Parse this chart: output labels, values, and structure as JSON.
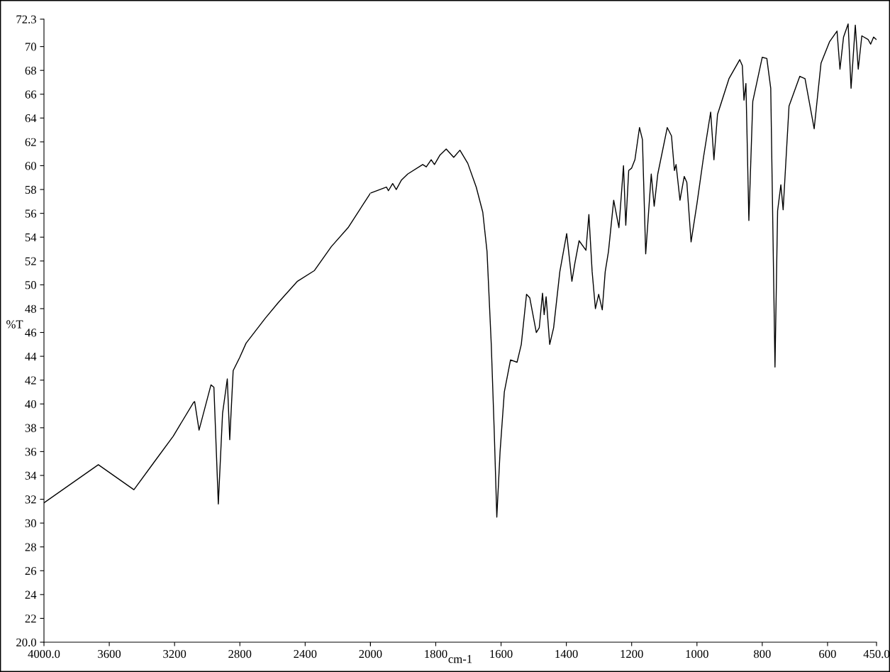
{
  "chart_data": [
    {
      "type": "line",
      "ylabel": "%T",
      "color": "#000000",
      "grid": false,
      "marker": "none",
      "line_style": "solid",
      "xlim": [
        4000,
        2000
      ],
      "ylim": [
        20,
        72.3
      ],
      "xticks": [
        {
          "value": 4000,
          "label": "4000.0"
        },
        3600,
        3200,
        2800,
        2400,
        {
          "value": 2000,
          "label": null
        }
      ],
      "yticks": [
        {
          "value": 20,
          "label": "20.0"
        },
        22,
        24,
        26,
        28,
        30,
        32,
        34,
        36,
        38,
        40,
        42,
        44,
        46,
        48,
        50,
        52,
        54,
        56,
        58,
        60,
        62,
        64,
        66,
        68,
        70,
        {
          "value": 72.3,
          "label": "72.3"
        }
      ],
      "x": [
        4000,
        3667,
        3449,
        3326,
        3208,
        3085,
        3077,
        3050,
        2977,
        2959,
        2932,
        2906,
        2877,
        2862,
        2841,
        2801,
        2762,
        2644,
        2565,
        2447,
        2343,
        2240,
        2137,
        2000
      ],
      "values": [
        31.7,
        34.9,
        32.8,
        35.1,
        37.3,
        40.1,
        40.2,
        37.8,
        41.6,
        41.4,
        31.6,
        39.2,
        42.1,
        37.0,
        42.8,
        43.9,
        45.1,
        47.2,
        48.5,
        50.3,
        51.2,
        53.2,
        54.8,
        57.7
      ]
    },
    {
      "type": "line",
      "xlabel": "cm-1",
      "color": "#000000",
      "grid": false,
      "marker": "none",
      "line_style": "solid",
      "tick_labels": "x",
      "xlim": [
        2000,
        450
      ],
      "ylim": [
        20,
        72.3
      ],
      "xticks": [
        2000,
        1800,
        1600,
        1400,
        1200,
        1000,
        800,
        600,
        {
          "value": 450,
          "label": "450.0"
        }
      ],
      "x": [
        2000,
        1951,
        1945,
        1932,
        1921,
        1905,
        1886,
        1840,
        1829,
        1814,
        1804,
        1787,
        1768,
        1745,
        1726,
        1702,
        1676,
        1656,
        1643,
        1630,
        1621,
        1613,
        1603,
        1590,
        1571,
        1551,
        1538,
        1522,
        1512,
        1492,
        1483,
        1473,
        1468,
        1462,
        1451,
        1439,
        1420,
        1399,
        1383,
        1374,
        1361,
        1340,
        1331,
        1321,
        1311,
        1301,
        1290,
        1281,
        1271,
        1255,
        1239,
        1225,
        1218,
        1209,
        1200,
        1190,
        1176,
        1167,
        1157,
        1140,
        1131,
        1120,
        1091,
        1078,
        1069,
        1064,
        1052,
        1039,
        1031,
        1018,
        1000,
        980,
        958,
        948,
        937,
        902,
        869,
        861,
        856,
        850,
        841,
        829,
        800,
        786,
        774,
        761,
        753,
        743,
        736,
        718,
        685,
        669,
        641,
        620,
        594,
        571,
        562,
        551,
        537,
        528,
        515,
        506,
        495,
        476,
        468,
        459,
        451
      ],
      "values": [
        57.7,
        58.2,
        57.9,
        58.5,
        58.0,
        58.8,
        59.3,
        60.1,
        59.9,
        60.5,
        60.1,
        60.9,
        61.4,
        60.7,
        61.3,
        60.2,
        58.2,
        56.1,
        52.8,
        45.0,
        37.8,
        30.5,
        36.0,
        41.0,
        43.7,
        43.5,
        45.0,
        49.2,
        48.9,
        46.0,
        46.4,
        49.3,
        47.5,
        49.0,
        45.0,
        46.4,
        51.1,
        54.3,
        50.3,
        51.8,
        53.7,
        52.9,
        55.9,
        51.1,
        48.0,
        49.2,
        47.9,
        51.1,
        52.8,
        57.1,
        54.8,
        60.0,
        55.0,
        59.6,
        59.8,
        60.5,
        63.2,
        62.2,
        52.6,
        59.3,
        56.6,
        59.3,
        63.2,
        62.5,
        59.6,
        60.1,
        57.1,
        59.1,
        58.6,
        53.6,
        56.8,
        60.7,
        64.5,
        60.5,
        64.3,
        67.3,
        68.9,
        68.4,
        65.5,
        66.9,
        55.4,
        65.4,
        69.1,
        69.0,
        66.5,
        43.1,
        56.2,
        58.4,
        56.3,
        65.0,
        67.5,
        67.3,
        63.1,
        68.6,
        70.4,
        71.3,
        68.1,
        70.8,
        71.9,
        66.5,
        71.8,
        68.1,
        70.9,
        70.6,
        70.2,
        70.8,
        70.6
      ]
    }
  ]
}
